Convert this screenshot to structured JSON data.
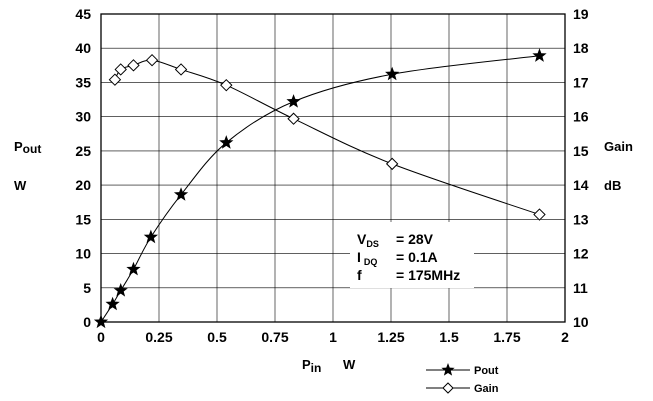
{
  "chart_data": {
    "type": "line",
    "x_axis": {
      "min": 0,
      "max": 2,
      "ticks": [
        0,
        0.25,
        0.5,
        0.75,
        1,
        1.25,
        1.5,
        1.75,
        2
      ],
      "tick_labels": [
        "0",
        "0.25",
        "0.5",
        "0.75",
        "1",
        "1.25",
        "1.5",
        "1.75",
        "2"
      ],
      "label_main": "P",
      "label_sub": "in",
      "label_unit": "W"
    },
    "y_left": {
      "min": 0,
      "max": 45,
      "ticks": [
        0,
        5,
        10,
        15,
        20,
        25,
        30,
        35,
        40,
        45
      ],
      "tick_labels": [
        "0",
        "5",
        "10",
        "15",
        "20",
        "25",
        "30",
        "35",
        "40",
        "45"
      ],
      "label_main": "P",
      "label_sub": "out",
      "label_unit": "W"
    },
    "y_right": {
      "min": 10,
      "max": 19,
      "ticks": [
        10,
        11,
        12,
        13,
        14,
        15,
        16,
        17,
        18,
        19
      ],
      "tick_labels": [
        "10",
        "11",
        "12",
        "13",
        "14",
        "15",
        "16",
        "17",
        "18",
        "19"
      ],
      "label_main": "Gain",
      "label_unit": "dB"
    },
    "grid": true,
    "series": [
      {
        "name": "Pout",
        "axis": "left",
        "marker": "star",
        "x": [
          0,
          0.05,
          0.085,
          0.14,
          0.215,
          0.345,
          0.54,
          0.83,
          1.255,
          1.89
        ],
        "y": [
          0,
          2.6,
          4.6,
          7.7,
          12.4,
          18.6,
          26.2,
          32.2,
          36.2,
          38.9
        ]
      },
      {
        "name": "Gain",
        "axis": "right",
        "marker": "diamond",
        "x": [
          0.06,
          0.085,
          0.14,
          0.22,
          0.345,
          0.54,
          0.83,
          1.255,
          1.89
        ],
        "y": [
          17.08,
          17.38,
          17.5,
          17.65,
          17.38,
          16.92,
          15.94,
          14.62,
          13.14
        ]
      }
    ],
    "annotation": {
      "lines": [
        {
          "main": "V",
          "sub": "DS",
          "value": "= 28V"
        },
        {
          "main": "I",
          "sub": "DQ",
          "value": "= 0.1A"
        },
        {
          "main": "f",
          "sub": "",
          "value": "= 175MHz"
        }
      ]
    },
    "legend_position": "bottom-right"
  }
}
